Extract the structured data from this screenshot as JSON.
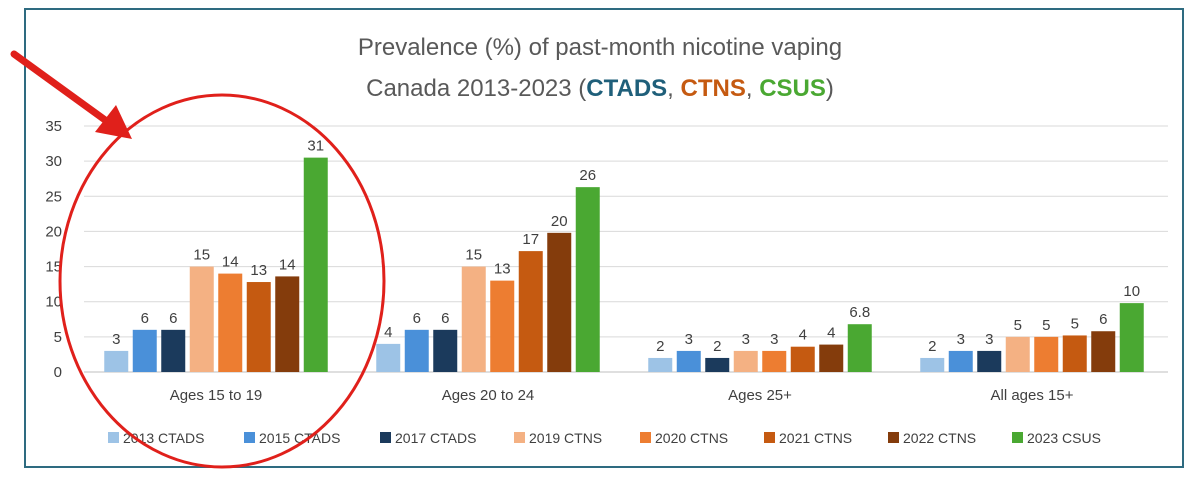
{
  "chart_data": {
    "type": "bar",
    "title_line1": "Prevalence (%) of past-month nicotine vaping",
    "title_line2_prefix": "Canada 2013-2023 (",
    "title_sources": [
      {
        "text": "CTADS",
        "color": "#1f5f7a"
      },
      {
        "text": "CTNS",
        "color": "#c55a11"
      },
      {
        "text": "CSUS",
        "color": "#4aa832"
      }
    ],
    "title_sep": ", ",
    "title_line2_suffix": ")",
    "categories": [
      "Ages 15 to 19",
      "Ages 20 to 24",
      "Ages 25+",
      "All ages 15+"
    ],
    "ylim": [
      0,
      35
    ],
    "yticks": [
      0,
      5,
      10,
      15,
      20,
      25,
      30,
      35
    ],
    "grid": true,
    "legend_position": "bottom",
    "series": [
      {
        "name": "2013 CTADS",
        "color": "#9dc3e6",
        "values": [
          3,
          4,
          2,
          2
        ],
        "labels": [
          "3",
          "4",
          "2",
          "2"
        ]
      },
      {
        "name": "2015 CTADS",
        "color": "#4a90d9",
        "values": [
          6,
          6,
          3,
          3
        ],
        "labels": [
          "6",
          "6",
          "3",
          "3"
        ]
      },
      {
        "name": "2017 CTADS",
        "color": "#1b3a5c",
        "values": [
          6,
          6,
          2,
          3
        ],
        "labels": [
          "6",
          "6",
          "2",
          "3"
        ]
      },
      {
        "name": "2019 CTNS",
        "color": "#f4b183",
        "values": [
          15,
          15,
          3,
          5
        ],
        "labels": [
          "15",
          "15",
          "3",
          "5"
        ]
      },
      {
        "name": "2020 CTNS",
        "color": "#ed7d31",
        "values": [
          14,
          13,
          3,
          5
        ],
        "labels": [
          "14",
          "13",
          "3",
          "5"
        ]
      },
      {
        "name": "2021 CTNS",
        "color": "#c55a11",
        "values": [
          12.8,
          17.2,
          3.6,
          5.2
        ],
        "labels": [
          "13",
          "17",
          "4",
          "5"
        ]
      },
      {
        "name": "2022 CTNS",
        "color": "#843c0c",
        "values": [
          13.6,
          19.8,
          3.9,
          5.8
        ],
        "labels": [
          "14",
          "20",
          "4",
          "6"
        ]
      },
      {
        "name": "2023 CSUS",
        "color": "#4aa832",
        "values": [
          30.5,
          26.3,
          6.8,
          9.8
        ],
        "labels": [
          "31",
          "26",
          "6.8",
          "10"
        ]
      }
    ]
  },
  "annotation": {
    "color": "#e0201b",
    "arrow_icon": "arrow-pointer-icon",
    "circle_icon": "highlight-circle-icon"
  }
}
